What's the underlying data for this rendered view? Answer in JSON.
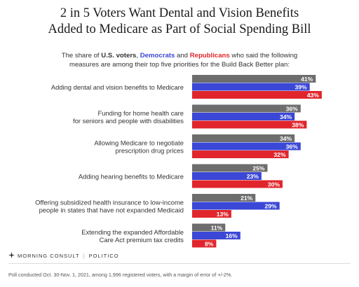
{
  "header": {
    "title_line1": "2 in 5 Voters Want Dental and Vision Benefits",
    "title_line2": "Added to Medicare as Part of Social Spending Bill",
    "subtitle_pre": "The share of",
    "subtitle_us": "U.S. voters",
    "subtitle_comma": ",",
    "subtitle_dem": "Democrats",
    "subtitle_and": "and",
    "subtitle_rep": "Republicans",
    "subtitle_post": "who said the following",
    "subtitle_line2": "measures are among their top five priorities for the Build Back Better plan:"
  },
  "footer": {
    "brand1": "MORNING CONSULT",
    "brand2": "POLITICO",
    "note": "Poll conducted Oct. 30-Nov. 1, 2021, among 1,996 registered voters, with a margin of error of +/-2%."
  },
  "chart_data": {
    "type": "bar",
    "orientation": "horizontal",
    "title": "2 in 5 Voters Want Dental and Vision Benefits Added to Medicare as Part of Social Spending Bill",
    "categories": [
      [
        "Adding dental and vision benefits to Medicare"
      ],
      [
        "Funding for home health care",
        "for seniors and people with disabilities"
      ],
      [
        "Allowing Medicare to negotiate",
        "prescription drug prices"
      ],
      [
        "Adding hearing benefits to Medicare"
      ],
      [
        "Offering subsidized health insurance to low-income",
        "people in states that have not expanded Medicaid"
      ],
      [
        "Extending the expanded Affordable",
        "Care Act premium tax credits"
      ]
    ],
    "series": [
      {
        "name": "U.S. voters",
        "color": "#6d6d6d",
        "values": [
          41,
          36,
          34,
          25,
          21,
          11
        ]
      },
      {
        "name": "Democrats",
        "color": "#3b47d6",
        "values": [
          39,
          34,
          36,
          23,
          29,
          16
        ]
      },
      {
        "name": "Republicans",
        "color": "#e0262c",
        "values": [
          43,
          38,
          32,
          30,
          13,
          8
        ]
      }
    ],
    "value_suffix": "%",
    "xlim": [
      0,
      45
    ],
    "grid": false,
    "legend": "none"
  }
}
